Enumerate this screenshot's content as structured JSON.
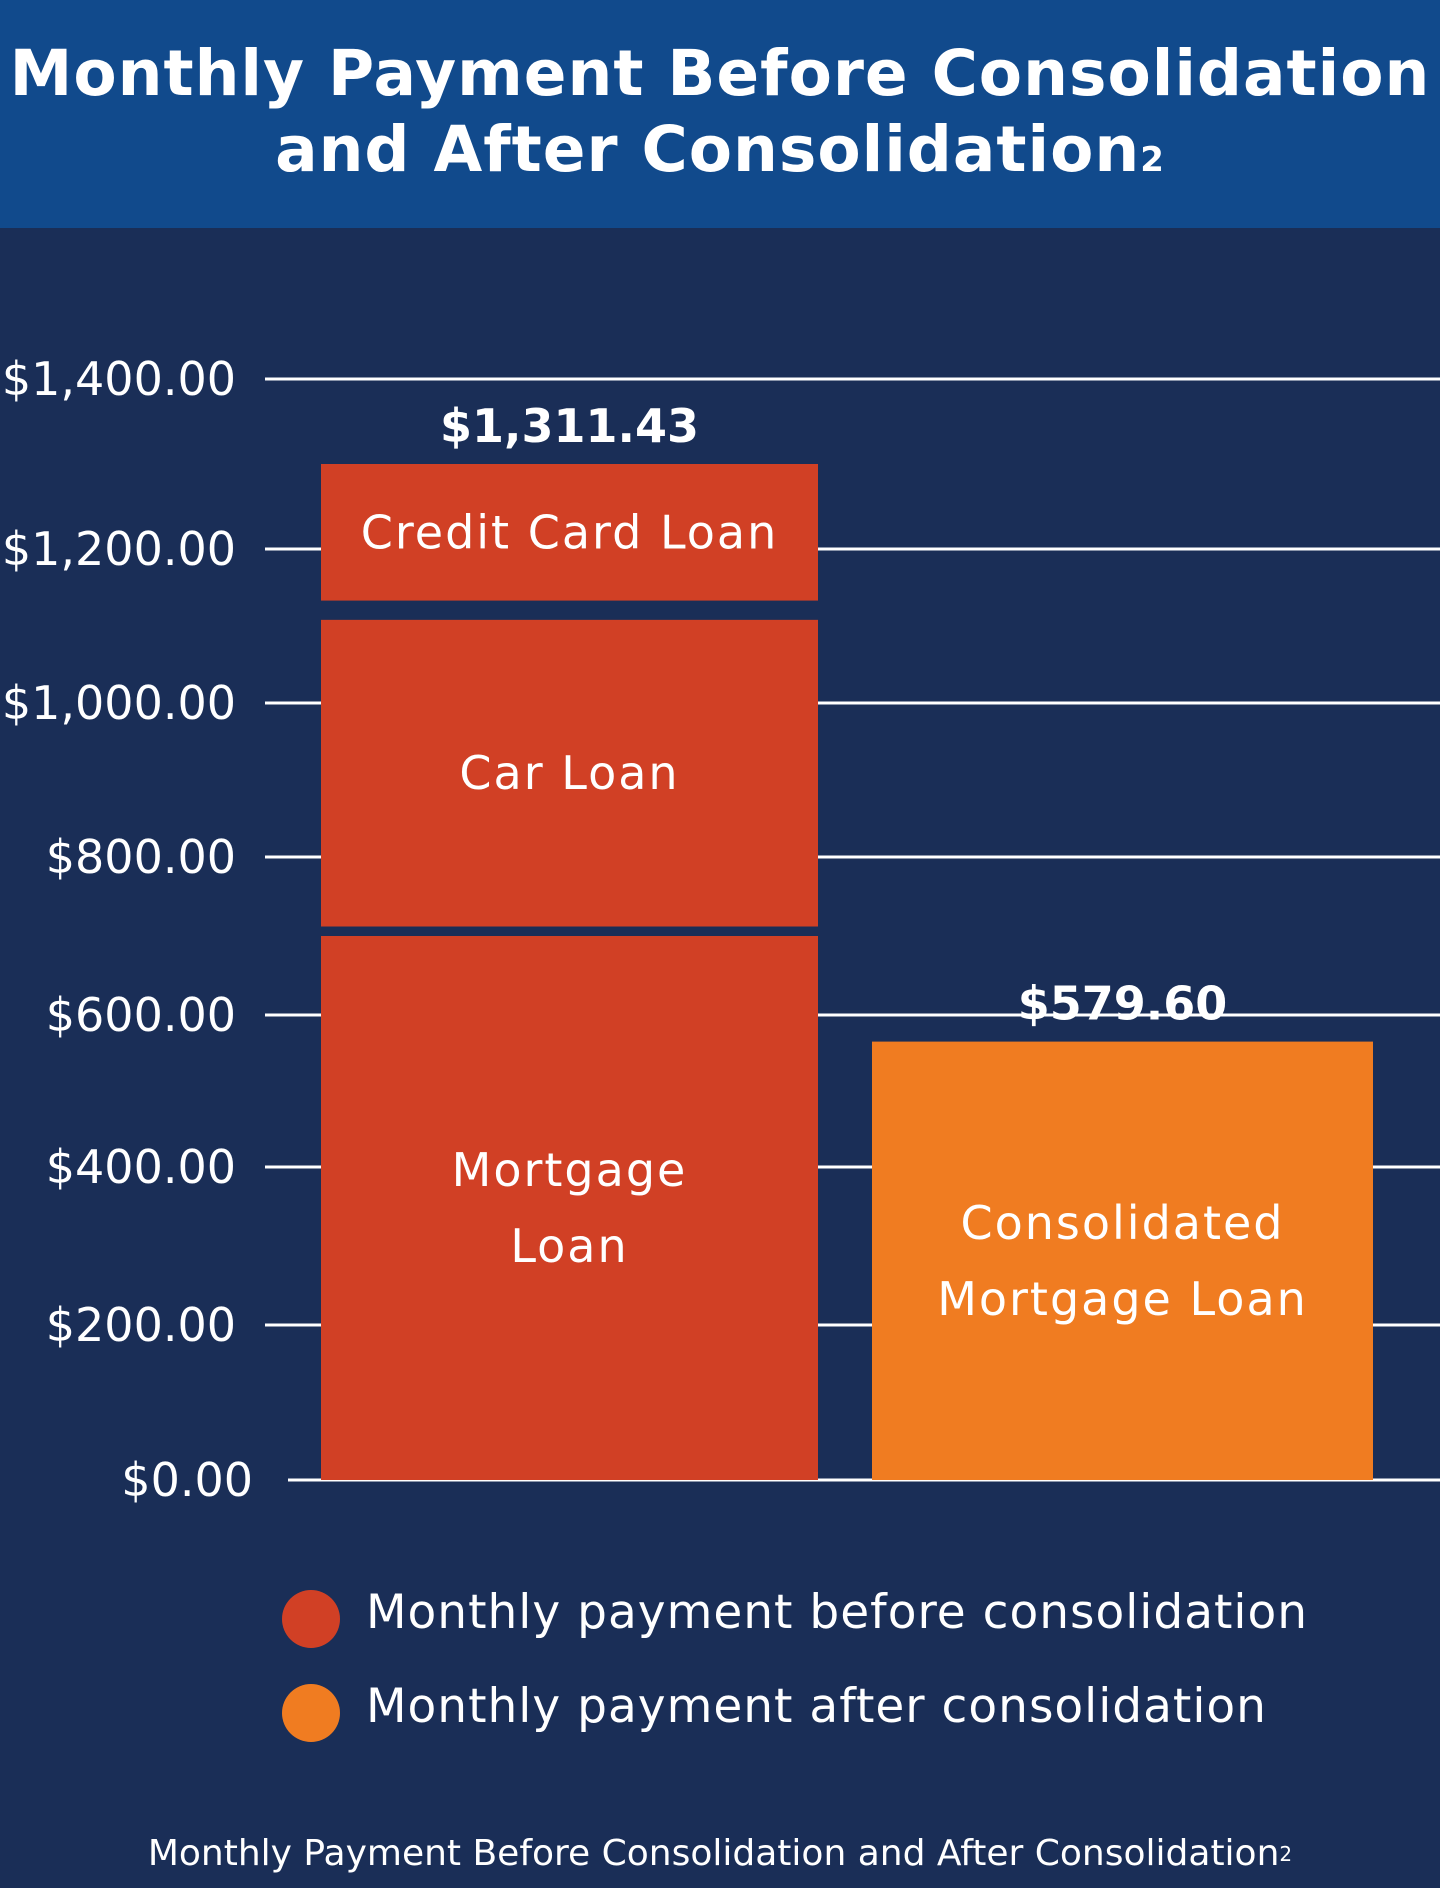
{
  "header": {
    "title_line1": "Monthly Payment Before Consolidation",
    "title_line2": "and After Consolidation",
    "title_sup": "2"
  },
  "chart_data": {
    "type": "bar",
    "stacked": true,
    "ylim": [
      0,
      1400
    ],
    "ytick_values": [
      0,
      200,
      400,
      600,
      800,
      1000,
      1200,
      1400
    ],
    "ytick_labels": [
      "$0.00",
      "$200.00",
      "$400.00",
      "$600.00",
      "$800.00",
      "$1,000.00",
      "$1,200.00",
      "$1,400.00"
    ],
    "grid": true,
    "legend_placement": "bottom",
    "bars": [
      {
        "total_label": "$1,311.43",
        "color": "#d14025",
        "segments": [
          {
            "label": [
              "Mortgage",
              "Loan"
            ],
            "start": 0,
            "end": 700
          },
          {
            "label": [
              "Car Loan"
            ],
            "start": 712,
            "end": 1108
          },
          {
            "label": [
              "Credit Card Loan"
            ],
            "start": 1133,
            "end": 1300
          }
        ]
      },
      {
        "total_label": "$579.60",
        "color": "#f07c21",
        "segments": [
          {
            "label": [
              "Consolidated",
              "Mortgage Loan"
            ],
            "start": 0,
            "end": 565
          }
        ]
      }
    ],
    "legend": [
      {
        "label": "Monthly payment before consolidation",
        "color": "#d14025"
      },
      {
        "label": "Monthly payment after consolidation",
        "color": "#f07c21"
      }
    ]
  },
  "caption": {
    "text": "Monthly Payment Before Consolidation and After Consolidation",
    "sup": "2"
  }
}
